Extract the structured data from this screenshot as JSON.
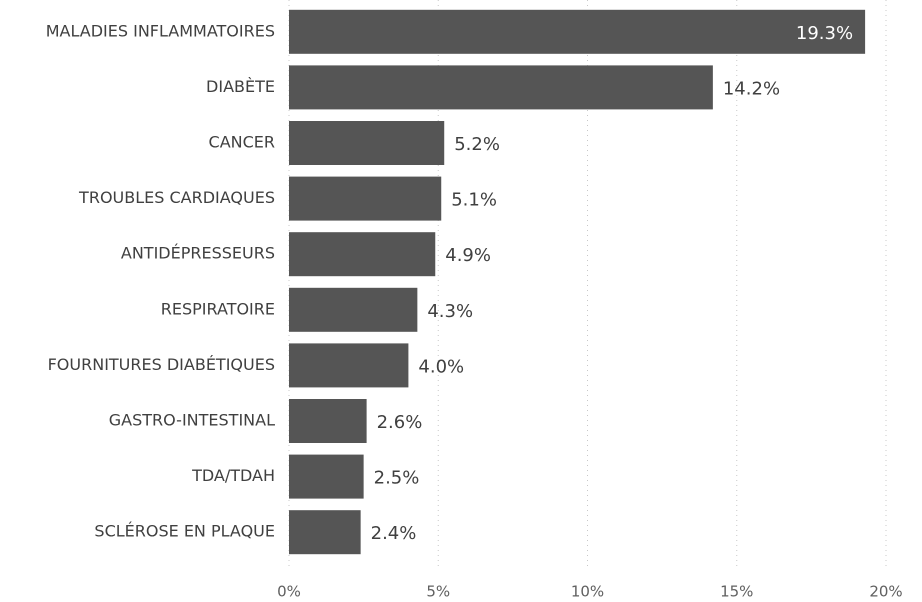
{
  "chart_data": {
    "type": "bar",
    "orientation": "horizontal",
    "categories": [
      "MALADIES INFLAMMATOIRES",
      "DIABÈTE",
      "CANCER",
      "TROUBLES CARDIAQUES",
      "ANTIDÉPRESSEURS",
      "RESPIRATOIRE",
      "FOURNITURES DIABÉTIQUES",
      "GASTRO-INTESTINAL",
      "TDA/TDAH",
      "SCLÉROSE EN PLAQUE"
    ],
    "values": [
      19.3,
      14.2,
      5.2,
      5.1,
      4.9,
      4.3,
      4.0,
      2.6,
      2.5,
      2.4
    ],
    "value_labels": [
      "19.3%",
      "14.2%",
      "5.2%",
      "5.1%",
      "4.9%",
      "4.3%",
      "4.0%",
      "2.6%",
      "2.5%",
      "2.4%"
    ],
    "color": "#555555",
    "xlim": [
      0,
      20
    ],
    "xticks": [
      {
        "value": 0,
        "label": "0%"
      },
      {
        "value": 5,
        "label": "5%"
      },
      {
        "value": 10,
        "label": "10%"
      },
      {
        "value": 15,
        "label": "15%"
      },
      {
        "value": 20,
        "label": "20%"
      }
    ],
    "grid": true
  }
}
